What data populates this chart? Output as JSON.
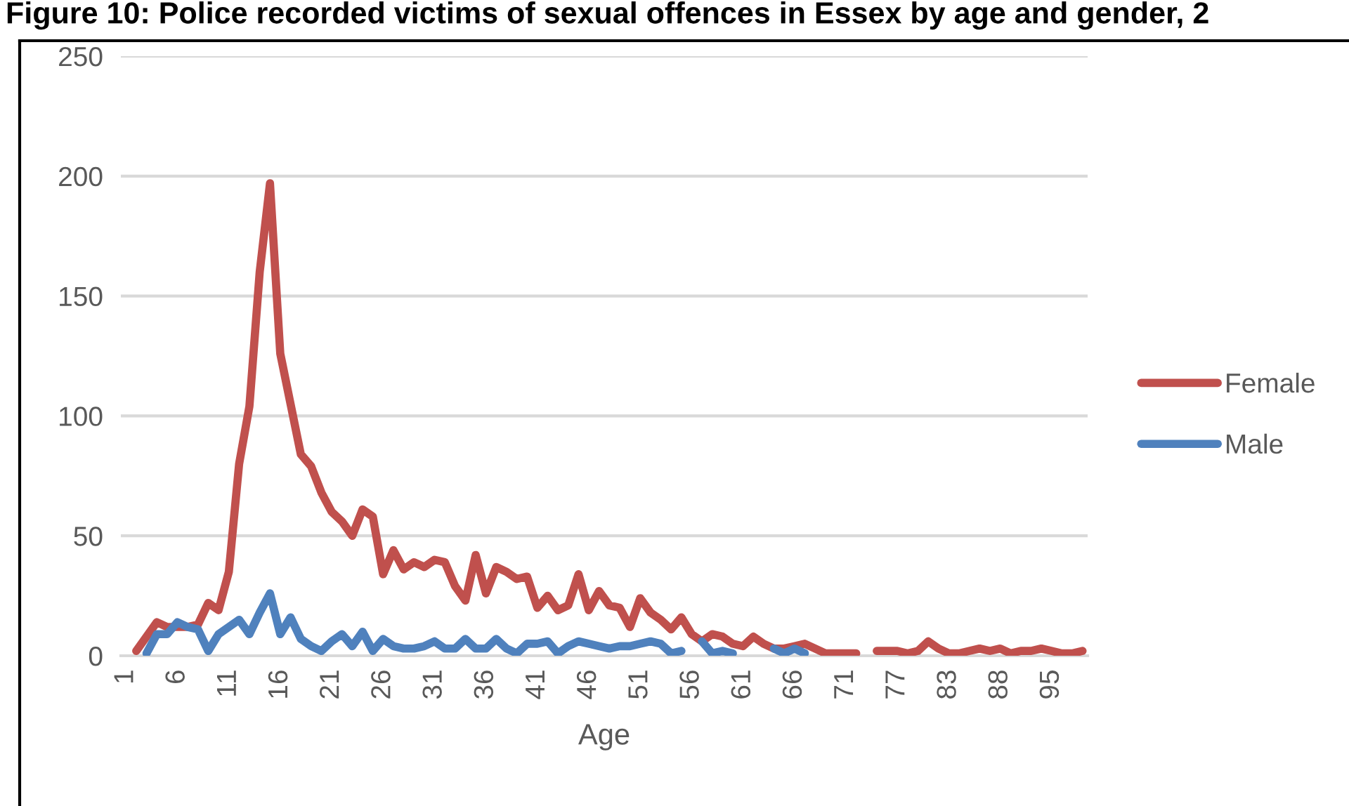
{
  "chart_data": {
    "type": "line",
    "title": "Figure 10: Police recorded victims of sexual offences in Essex by age and gender, 2",
    "xlabel": "Age",
    "categories": [
      "1",
      null,
      null,
      null,
      null,
      "6",
      null,
      null,
      null,
      null,
      "11",
      null,
      null,
      null,
      null,
      "16",
      null,
      null,
      null,
      null,
      "21",
      null,
      null,
      null,
      null,
      "26",
      null,
      null,
      null,
      null,
      "31",
      null,
      null,
      null,
      null,
      "36",
      null,
      null,
      null,
      null,
      "41",
      null,
      null,
      null,
      null,
      "46",
      null,
      null,
      null,
      null,
      "51",
      null,
      null,
      null,
      null,
      "56",
      null,
      null,
      null,
      null,
      "61",
      null,
      null,
      null,
      null,
      "66",
      null,
      null,
      null,
      null,
      "71",
      null,
      null,
      null,
      null,
      "77",
      null,
      null,
      null,
      null,
      "83",
      null,
      null,
      null,
      null,
      "88",
      null,
      null,
      null,
      null,
      "95",
      null,
      null,
      null
    ],
    "series": [
      {
        "name": "Female",
        "color": "#c0504d",
        "values": [
          null,
          2,
          8,
          14,
          12,
          12,
          12,
          13,
          22,
          19,
          35,
          80,
          104,
          160,
          197,
          126,
          105,
          84,
          79,
          68,
          60,
          56,
          50,
          61,
          58,
          34,
          44,
          36,
          39,
          37,
          40,
          39,
          29,
          23,
          42,
          26,
          37,
          35,
          32,
          33,
          20,
          25,
          19,
          21,
          34,
          19,
          27,
          21,
          20,
          12,
          24,
          18,
          15,
          11,
          16,
          9,
          6,
          9,
          8,
          5,
          4,
          8,
          5,
          3,
          3,
          4,
          5,
          3,
          1,
          1,
          1,
          1,
          null,
          2,
          2,
          2,
          1,
          2,
          6,
          3,
          1,
          1,
          2,
          3,
          2,
          3,
          1,
          2,
          2,
          3,
          2,
          1,
          1,
          2
        ]
      },
      {
        "name": "Male",
        "color": "#4f81bd",
        "values": [
          null,
          null,
          1,
          9,
          9,
          14,
          12,
          11,
          2,
          9,
          12,
          15,
          9,
          18,
          26,
          9,
          16,
          7,
          4,
          2,
          6,
          9,
          4,
          10,
          2,
          7,
          4,
          3,
          3,
          4,
          6,
          3,
          3,
          7,
          3,
          3,
          7,
          3,
          1,
          5,
          5,
          6,
          1,
          4,
          6,
          5,
          4,
          3,
          4,
          4,
          5,
          6,
          5,
          1,
          2,
          null,
          6,
          1,
          2,
          1,
          null,
          null,
          null,
          3,
          1,
          3,
          1,
          null,
          null,
          null,
          null,
          null,
          null,
          null,
          null,
          null,
          null,
          null,
          null,
          null,
          null,
          null,
          null,
          null,
          null,
          null,
          null,
          null,
          null,
          null,
          null,
          null,
          null,
          null
        ]
      }
    ],
    "ylim": [
      0,
      250
    ],
    "yticks": [
      0,
      50,
      100,
      150,
      200,
      250
    ],
    "grid": "y",
    "legend": "right"
  }
}
